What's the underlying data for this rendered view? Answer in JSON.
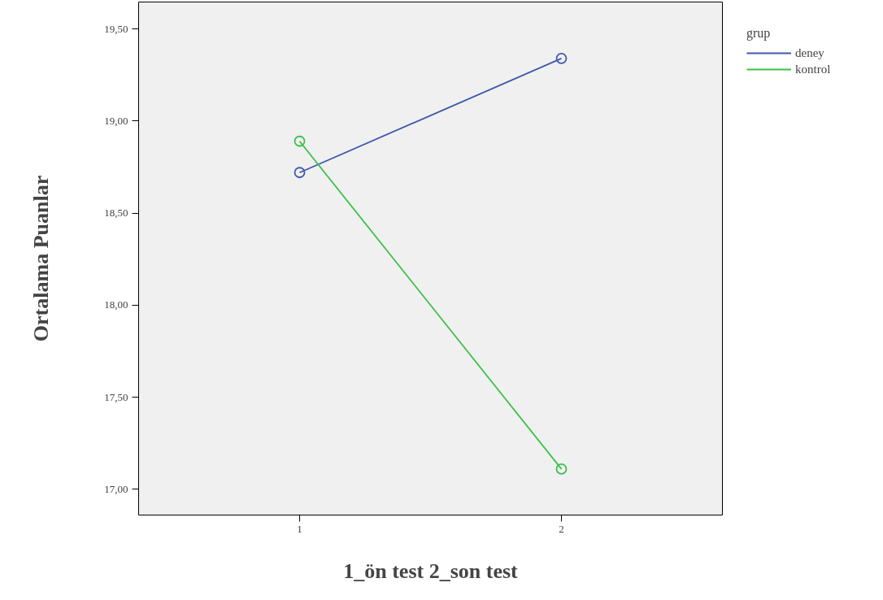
{
  "chart_data": {
    "type": "line",
    "xlabel": "1_ön test 2_son test",
    "ylabel": "Ortalama Puanlar",
    "legend_title": "grup",
    "x": [
      1,
      2
    ],
    "series": [
      {
        "name": "deney",
        "color": "#3e58ac",
        "values": [
          18.72,
          19.34
        ]
      },
      {
        "name": "kontrol",
        "color": "#3bbf4a",
        "values": [
          18.89,
          17.11
        ]
      }
    ],
    "xlim": [
      0.385,
      2.615
    ],
    "xticks": [
      1,
      2
    ],
    "ylim": [
      16.86,
      19.646
    ],
    "yticks": [
      {
        "value": 17,
        "label": "17,00"
      },
      {
        "value": 17.5,
        "label": "17,50"
      },
      {
        "value": 18,
        "label": "18,00"
      },
      {
        "value": 18.5,
        "label": "18,50"
      },
      {
        "value": 19,
        "label": "19,00"
      },
      {
        "value": 19.5,
        "label": "19,50"
      }
    ],
    "marker": "circle",
    "legend": "top right",
    "grid": false
  }
}
